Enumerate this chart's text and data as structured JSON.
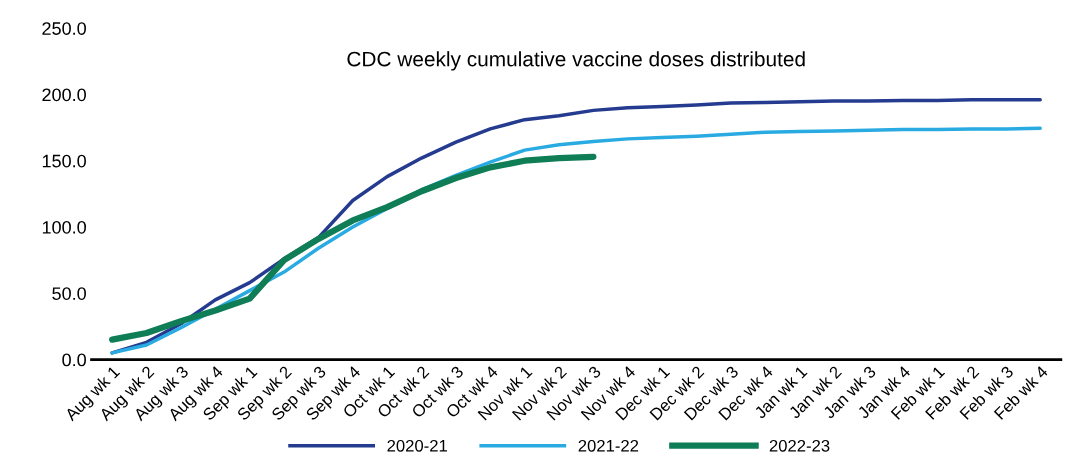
{
  "chart_data": {
    "type": "line",
    "title": "CDC weekly cumulative vaccine doses distributed",
    "categories": [
      "Aug wk 1",
      "Aug wk 2",
      "Aug wk 3",
      "Aug wk 4",
      "Sep wk 1",
      "Sep wk 2",
      "Sep wk 3",
      "Sep wk 4",
      "Oct wk 1",
      "Oct wk 2",
      "Oct wk 3",
      "Oct wk 4",
      "Nov wk 1",
      "Nov wk 2",
      "Nov wk 3",
      "Nov wk 4",
      "Dec wk 1",
      "Dec wk 2",
      "Dec wk 3",
      "Dec wk 4",
      "Jan wk 1",
      "Jan wk 2",
      "Jan wk 3",
      "Jan wk 4",
      "Feb wk 1",
      "Feb wk 2",
      "Feb wk 3",
      "Feb wk 4"
    ],
    "series": [
      {
        "name": "2020-21",
        "color": "#253b8f",
        "values": [
          5,
          13,
          27,
          45,
          58,
          76,
          92,
          120,
          138,
          152,
          164,
          174,
          181,
          184,
          188,
          190,
          191,
          192,
          193.5,
          194,
          194.5,
          195,
          195,
          195.5,
          195.5,
          196,
          196,
          196
        ]
      },
      {
        "name": "2021-22",
        "color": "#29abe2",
        "values": [
          5,
          11,
          24,
          38,
          52,
          66,
          84,
          100,
          114,
          128,
          139,
          149,
          158,
          162,
          164.5,
          166.5,
          167.5,
          168.5,
          170,
          171.5,
          172,
          172.5,
          173,
          173.5,
          173.5,
          174,
          174,
          174.5
        ]
      },
      {
        "name": "2022-23",
        "color": "#0f7d55",
        "values": [
          15,
          20,
          29,
          37,
          46,
          75,
          91,
          105,
          115,
          127,
          137,
          145,
          150,
          152,
          153,
          null,
          null,
          null,
          null,
          null,
          null,
          null,
          null,
          null,
          null,
          null,
          null,
          null
        ]
      }
    ],
    "ylim": [
      0,
      250
    ],
    "yticks": [
      {
        "value": 0,
        "label": "0.0"
      },
      {
        "value": 50,
        "label": "50.0"
      },
      {
        "value": 100,
        "label": "100.0"
      },
      {
        "value": 150,
        "label": "150.0"
      },
      {
        "value": 200,
        "label": "200.0"
      },
      {
        "value": 250,
        "label": "250.0"
      }
    ],
    "grid": false,
    "legend": "bottom",
    "line_style": "solid",
    "marker": "none"
  }
}
